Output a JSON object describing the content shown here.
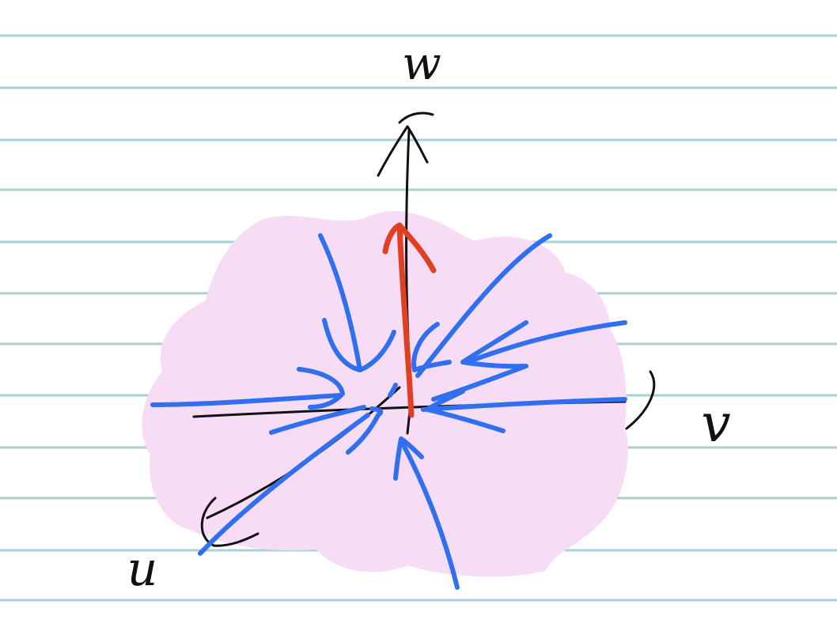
{
  "labels": {
    "w": "w",
    "v": "v",
    "u": "u"
  },
  "colors": {
    "paper": "#ffffff",
    "ruling": "#a9d0d3",
    "ink": "#111111",
    "cloud": "#f7dcf6",
    "field_arrows": "#2f6ff0",
    "vector": "#e0401f"
  }
}
